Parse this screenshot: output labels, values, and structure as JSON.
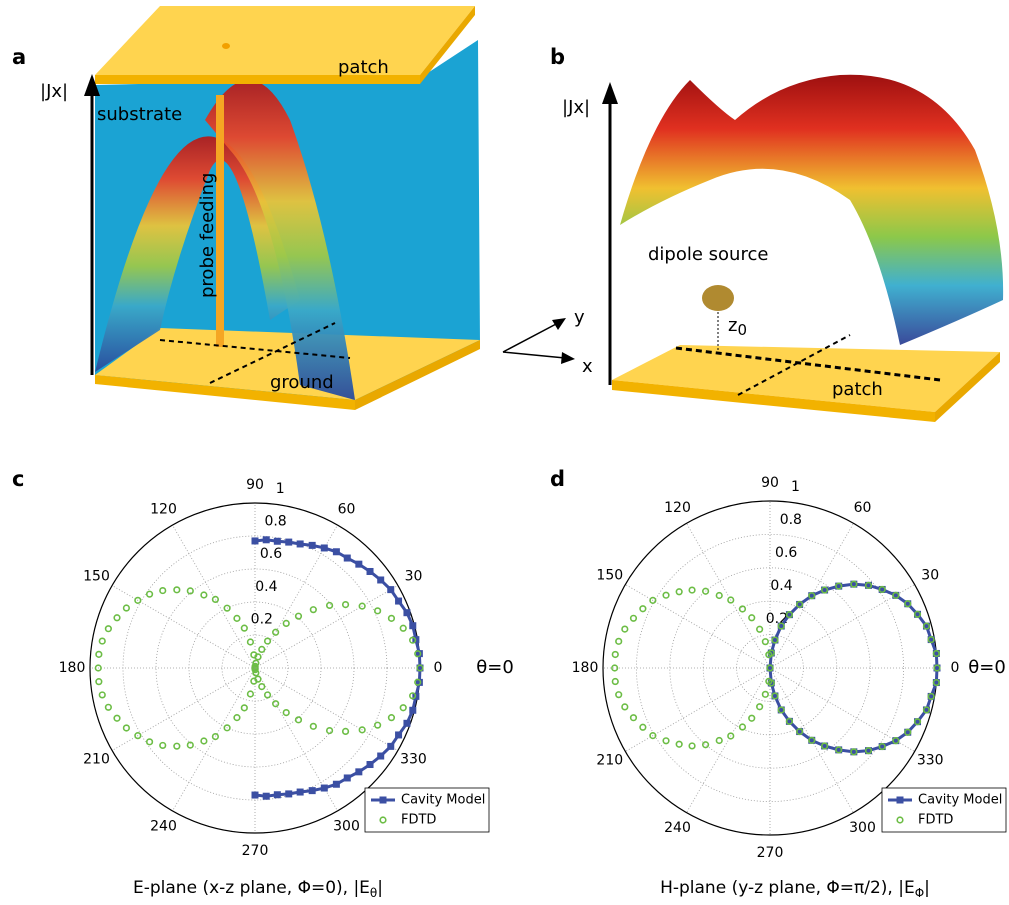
{
  "diagram_a": {
    "label": "a",
    "axis_label": "|Jx|",
    "patch": "patch",
    "substrate": "substrate",
    "probe": "probe feeding",
    "ground": "ground"
  },
  "diagram_b": {
    "label": "b",
    "axis_label": "|Jx|",
    "source": "dipole source",
    "z_label": "z",
    "z_sub": "0",
    "patch": "patch",
    "axis_x": "x",
    "axis_y": "y"
  },
  "chart_data": [
    {
      "type": "polar",
      "panel": "c",
      "caption": "E-plane (x-z plane, Φ=0), |E",
      "caption_sub": "θ",
      "caption_end": "|",
      "annotation": "θ=0",
      "rlim": [
        0,
        1
      ],
      "rticks": [
        0.2,
        0.4,
        0.6,
        0.8,
        1
      ],
      "angle_ticks": [
        0,
        30,
        60,
        90,
        120,
        150,
        180,
        210,
        240,
        270,
        300,
        330
      ],
      "grid": true,
      "legend": "lower right",
      "series": [
        {
          "name": "Cavity Model",
          "color": "#3b4fa3",
          "marker": "square",
          "x": [
            270,
            275,
            280,
            285,
            290,
            295,
            300,
            305,
            310,
            315,
            320,
            325,
            330,
            335,
            340,
            345,
            350,
            355,
            0,
            5,
            10,
            15,
            20,
            25,
            30,
            35,
            40,
            45,
            50,
            55,
            60,
            65,
            70,
            75,
            80,
            85,
            90
          ],
          "values": [
            0.77,
            0.78,
            0.78,
            0.79,
            0.8,
            0.82,
            0.84,
            0.86,
            0.87,
            0.89,
            0.91,
            0.93,
            0.95,
            0.96,
            0.98,
            0.99,
            0.99,
            1,
            1,
            1,
            0.99,
            0.99,
            0.98,
            0.96,
            0.95,
            0.93,
            0.91,
            0.89,
            0.87,
            0.86,
            0.84,
            0.82,
            0.8,
            0.79,
            0.78,
            0.78,
            0.77
          ]
        },
        {
          "name": "FDTD",
          "color": "#6cbd45",
          "marker": "circle",
          "x": [
            0,
            5,
            10,
            15,
            20,
            25,
            30,
            35,
            40,
            45,
            50,
            55,
            60,
            65,
            70,
            75,
            80,
            85,
            90,
            95,
            100,
            105,
            110,
            115,
            120,
            125,
            130,
            135,
            140,
            145,
            150,
            155,
            160,
            165,
            170,
            175,
            180,
            185,
            190,
            195,
            200,
            205,
            210,
            215,
            220,
            225,
            230,
            235,
            240,
            245,
            250,
            255,
            260,
            265,
            270,
            275,
            280,
            285,
            290,
            295,
            300,
            305,
            310,
            315,
            320,
            325,
            330,
            335,
            340,
            345,
            350,
            355
          ],
          "values": [
            1,
            0.99,
            0.97,
            0.93,
            0.88,
            0.82,
            0.75,
            0.67,
            0.59,
            0.5,
            0.41,
            0.33,
            0.25,
            0.18,
            0.12,
            0.07,
            0.03,
            0.01,
            0,
            0.08,
            0.16,
            0.25,
            0.32,
            0.4,
            0.48,
            0.54,
            0.61,
            0.67,
            0.73,
            0.78,
            0.82,
            0.86,
            0.89,
            0.92,
            0.94,
            0.95,
            0.95,
            0.95,
            0.94,
            0.92,
            0.89,
            0.86,
            0.82,
            0.78,
            0.73,
            0.67,
            0.61,
            0.54,
            0.48,
            0.4,
            0.32,
            0.25,
            0.16,
            0.08,
            0,
            0.01,
            0.03,
            0.07,
            0.12,
            0.18,
            0.25,
            0.33,
            0.41,
            0.5,
            0.59,
            0.67,
            0.75,
            0.82,
            0.88,
            0.93,
            0.97,
            0.99
          ]
        }
      ]
    },
    {
      "type": "polar",
      "panel": "d",
      "caption": "H-plane (y-z plane, Φ=π/2), |E",
      "caption_sub": "Φ",
      "caption_end": "|",
      "annotation": "θ=0",
      "rlim": [
        0,
        1
      ],
      "rticks": [
        0.2,
        0.4,
        0.6,
        0.8,
        1
      ],
      "angle_ticks": [
        0,
        30,
        60,
        90,
        120,
        150,
        180,
        210,
        240,
        270,
        300,
        330
      ],
      "grid": true,
      "legend": "lower right",
      "series": [
        {
          "name": "Cavity Model",
          "color": "#3b4fa3",
          "marker": "square",
          "x": [
            270,
            275,
            280,
            285,
            290,
            295,
            300,
            305,
            310,
            315,
            320,
            325,
            330,
            335,
            340,
            345,
            350,
            355,
            0,
            5,
            10,
            15,
            20,
            25,
            30,
            35,
            40,
            45,
            50,
            55,
            60,
            65,
            70,
            75,
            80,
            85,
            90
          ],
          "values": [
            0,
            0.09,
            0.17,
            0.26,
            0.34,
            0.42,
            0.5,
            0.57,
            0.64,
            0.71,
            0.77,
            0.82,
            0.87,
            0.91,
            0.94,
            0.97,
            0.98,
            1,
            1,
            1,
            0.98,
            0.97,
            0.94,
            0.91,
            0.87,
            0.82,
            0.77,
            0.71,
            0.64,
            0.57,
            0.5,
            0.42,
            0.34,
            0.26,
            0.17,
            0.09,
            0
          ]
        },
        {
          "name": "FDTD",
          "color": "#6cbd45",
          "marker": "circle",
          "x": [
            0,
            5,
            10,
            15,
            20,
            25,
            30,
            35,
            40,
            45,
            50,
            55,
            60,
            65,
            70,
            75,
            80,
            85,
            90,
            95,
            100,
            105,
            110,
            115,
            120,
            125,
            130,
            135,
            140,
            145,
            150,
            155,
            160,
            165,
            170,
            175,
            180,
            185,
            190,
            195,
            200,
            205,
            210,
            215,
            220,
            225,
            230,
            235,
            240,
            245,
            250,
            255,
            260,
            265,
            270,
            275,
            280,
            285,
            290,
            295,
            300,
            305,
            310,
            315,
            320,
            325,
            330,
            335,
            340,
            345,
            350,
            355
          ],
          "values": [
            1,
            1,
            0.98,
            0.97,
            0.94,
            0.91,
            0.87,
            0.82,
            0.77,
            0.71,
            0.64,
            0.57,
            0.5,
            0.42,
            0.34,
            0.26,
            0.17,
            0.09,
            0,
            0.08,
            0.16,
            0.24,
            0.32,
            0.39,
            0.47,
            0.53,
            0.6,
            0.66,
            0.71,
            0.76,
            0.81,
            0.84,
            0.87,
            0.9,
            0.92,
            0.93,
            0.93,
            0.93,
            0.92,
            0.9,
            0.87,
            0.84,
            0.81,
            0.76,
            0.71,
            0.66,
            0.6,
            0.53,
            0.47,
            0.39,
            0.32,
            0.24,
            0.16,
            0.08,
            0,
            0.09,
            0.17,
            0.26,
            0.34,
            0.42,
            0.5,
            0.57,
            0.64,
            0.71,
            0.77,
            0.82,
            0.87,
            0.91,
            0.94,
            0.97,
            0.98,
            1
          ]
        }
      ]
    }
  ]
}
